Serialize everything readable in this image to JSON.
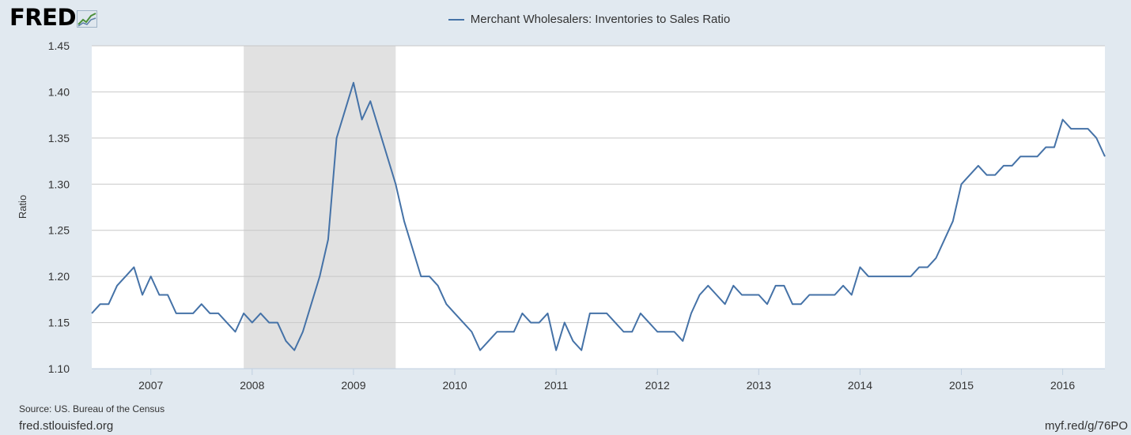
{
  "logo": {
    "text": "FRED",
    "mark": "graph-line-icon"
  },
  "source_text": "Source: US. Bureau of the Census",
  "site_text": "fred.stlouisfed.org",
  "shortlink_text": "myf.red/g/76PO",
  "colors": {
    "background": "#e1e9f0",
    "plot_background": "#ffffff",
    "series": "#4572a7",
    "recession": "#e1e1e1",
    "grid": "#c8c8c8"
  },
  "chart_data": {
    "type": "line",
    "title": "",
    "xlabel": "",
    "ylabel": "Ratio",
    "ylim": [
      1.1,
      1.45
    ],
    "yticks": [
      "1.10",
      "1.15",
      "1.20",
      "1.25",
      "1.30",
      "1.35",
      "1.40",
      "1.45"
    ],
    "xlim": [
      "2006-06",
      "2016-06"
    ],
    "xticks": [
      "2007",
      "2008",
      "2009",
      "2010",
      "2011",
      "2012",
      "2013",
      "2014",
      "2015",
      "2016"
    ],
    "grid": true,
    "legend_position": "top-center",
    "recessions": [
      {
        "start": "2007-12",
        "end": "2009-06"
      }
    ],
    "series": [
      {
        "name": "Merchant Wholesalers: Inventories to Sales Ratio",
        "x_start": "2006-06",
        "frequency": "monthly",
        "values": [
          1.16,
          1.17,
          1.17,
          1.19,
          1.2,
          1.21,
          1.18,
          1.2,
          1.18,
          1.18,
          1.16,
          1.16,
          1.16,
          1.17,
          1.16,
          1.16,
          1.15,
          1.14,
          1.16,
          1.15,
          1.16,
          1.15,
          1.15,
          1.13,
          1.12,
          1.14,
          1.17,
          1.2,
          1.24,
          1.35,
          1.38,
          1.41,
          1.37,
          1.39,
          1.36,
          1.33,
          1.3,
          1.26,
          1.23,
          1.2,
          1.2,
          1.19,
          1.17,
          1.16,
          1.15,
          1.14,
          1.12,
          1.13,
          1.14,
          1.14,
          1.14,
          1.16,
          1.15,
          1.15,
          1.16,
          1.12,
          1.15,
          1.13,
          1.12,
          1.16,
          1.16,
          1.16,
          1.15,
          1.14,
          1.14,
          1.16,
          1.15,
          1.14,
          1.14,
          1.14,
          1.13,
          1.16,
          1.18,
          1.19,
          1.18,
          1.17,
          1.19,
          1.18,
          1.18,
          1.18,
          1.17,
          1.19,
          1.19,
          1.17,
          1.17,
          1.18,
          1.18,
          1.18,
          1.18,
          1.19,
          1.18,
          1.21,
          1.2,
          1.2,
          1.2,
          1.2,
          1.2,
          1.2,
          1.21,
          1.21,
          1.22,
          1.24,
          1.26,
          1.3,
          1.31,
          1.32,
          1.31,
          1.31,
          1.32,
          1.32,
          1.33,
          1.33,
          1.33,
          1.34,
          1.34,
          1.37,
          1.36,
          1.36,
          1.36,
          1.35,
          1.33
        ]
      }
    ]
  }
}
